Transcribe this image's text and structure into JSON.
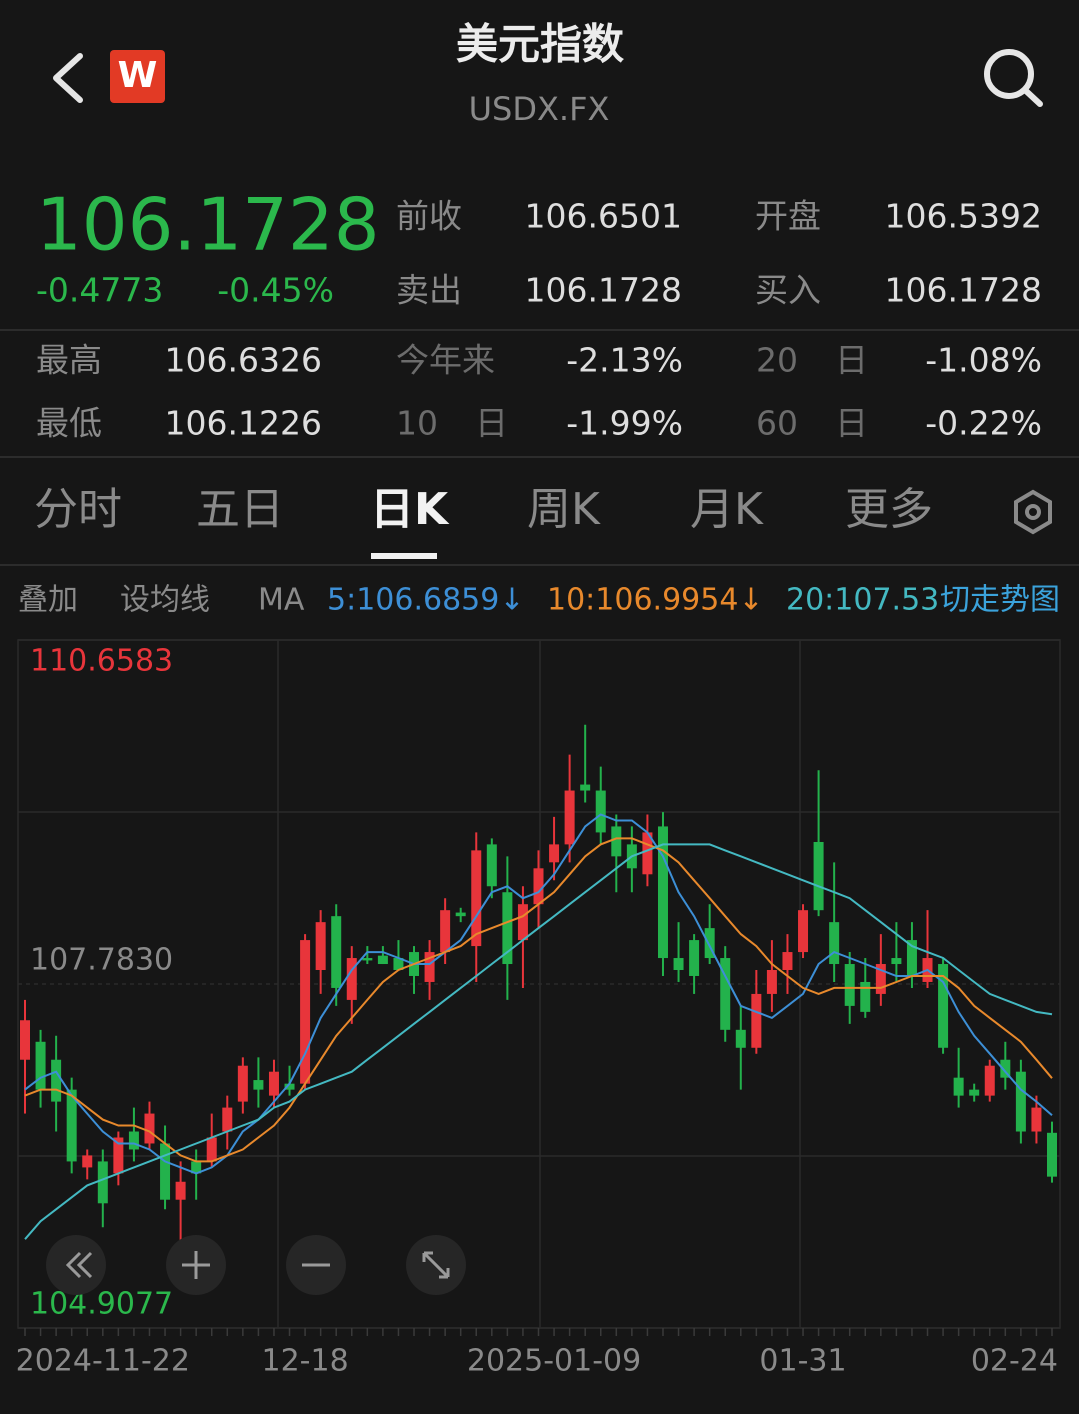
{
  "header": {
    "title": "美元指数",
    "code": "USDX.FX",
    "badge": "W"
  },
  "quote": {
    "price": "106.1728",
    "change": "-0.4773",
    "change_pct": "-0.45%",
    "fields": [
      [
        "前收",
        "106.6501"
      ],
      [
        "开盘",
        "106.5392"
      ],
      [
        "卖出",
        "106.1728"
      ],
      [
        "买入",
        "106.1728"
      ]
    ]
  },
  "stats": [
    [
      "最高",
      "106.6326",
      "今年来",
      "-2.13%",
      "20",
      "日",
      "-1.08%"
    ],
    [
      "最低",
      "106.1226",
      "10",
      "日",
      "-1.99%",
      "60",
      "日",
      "-0.22%"
    ]
  ],
  "tabs": [
    "分时",
    "五日",
    "日K",
    "周K",
    "月K",
    "更多"
  ],
  "toolbar": {
    "overlay": "叠加",
    "set_ma": "设均线",
    "ma": "MA",
    "switch": "切走势图"
  },
  "chart_data": {
    "type": "candlestick",
    "categories": [
      null,
      null,
      null,
      null,
      null,
      "2024-11-22",
      null,
      null,
      null,
      null,
      null,
      null,
      null,
      null,
      null,
      null,
      null,
      null,
      "12-18",
      null,
      null,
      null,
      null,
      null,
      null,
      null,
      null,
      null,
      null,
      null,
      null,
      null,
      null,
      null,
      "2025-01-09",
      null,
      null,
      null,
      null,
      null,
      null,
      null,
      null,
      null,
      null,
      null,
      null,
      null,
      null,
      null,
      "01-31",
      null,
      null,
      null,
      null,
      null,
      null,
      null,
      null,
      null,
      null,
      null,
      null,
      null,
      null,
      null,
      "02-24"
    ],
    "open": [
      107.15,
      107.3,
      107.15,
      106.9,
      106.25,
      106.3,
      106.2,
      106.55,
      106.45,
      106.45,
      105.98,
      106.3,
      106.3,
      106.55,
      106.8,
      106.98,
      106.85,
      106.95,
      106.95,
      107.9,
      108.35,
      107.65,
      108.0,
      108.02,
      108.0,
      108.05,
      107.8,
      108.05,
      108.38,
      108.1,
      108.95,
      108.55,
      108.15,
      108.45,
      108.8,
      108.95,
      109.45,
      109.4,
      109.1,
      108.95,
      108.7,
      109.1,
      108.0,
      108.15,
      108.25,
      108.0,
      107.4,
      107.25,
      107.7,
      107.9,
      108.05,
      108.97,
      108.3,
      107.95,
      107.8,
      107.7,
      108.0,
      108.15,
      107.8,
      107.95,
      107.0,
      106.9,
      106.85,
      107.15,
      107.05,
      106.55,
      106.5392
    ],
    "high": [
      107.65,
      107.4,
      107.35,
      107.0,
      106.4,
      106.4,
      106.55,
      106.75,
      106.8,
      106.6,
      106.3,
      106.4,
      106.7,
      106.85,
      107.17,
      107.17,
      107.15,
      107.1,
      108.2,
      108.4,
      108.45,
      108.1,
      108.1,
      108.1,
      108.15,
      108.1,
      108.15,
      108.5,
      108.42,
      109.05,
      109.0,
      108.85,
      108.6,
      108.9,
      109.18,
      109.7,
      109.95,
      109.6,
      109.2,
      109.1,
      109.2,
      109.22,
      108.3,
      108.2,
      108.45,
      108.1,
      107.6,
      107.9,
      108.15,
      108.2,
      108.45,
      109.57,
      108.8,
      108.05,
      108.0,
      108.2,
      108.3,
      108.3,
      108.4,
      108.0,
      107.25,
      106.95,
      107.15,
      107.3,
      107.15,
      106.85,
      106.6326
    ],
    "low": [
      106.7,
      106.75,
      106.55,
      106.2,
      106.15,
      105.75,
      106.1,
      106.3,
      106.4,
      105.9,
      105.63,
      105.98,
      106.25,
      106.4,
      106.7,
      106.75,
      106.75,
      106.85,
      106.9,
      107.7,
      107.6,
      107.45,
      107.95,
      107.95,
      107.9,
      107.7,
      107.65,
      107.95,
      108.3,
      107.8,
      108.5,
      107.65,
      107.75,
      108.25,
      108.65,
      108.8,
      109.3,
      108.95,
      108.55,
      108.55,
      108.6,
      107.85,
      107.8,
      107.7,
      107.95,
      107.3,
      106.9,
      107.2,
      107.55,
      107.7,
      108.0,
      108.35,
      107.8,
      107.45,
      107.5,
      107.6,
      107.8,
      107.75,
      107.75,
      107.2,
      106.75,
      106.8,
      106.8,
      106.9,
      106.45,
      106.45,
      106.1226
    ],
    "close": [
      107.48,
      106.9,
      106.8,
      106.3,
      106.35,
      105.95,
      106.5,
      106.4,
      106.7,
      105.98,
      106.13,
      106.2,
      106.5,
      106.75,
      107.1,
      106.9,
      107.05,
      106.9,
      108.15,
      108.3,
      107.75,
      108.0,
      107.98,
      107.95,
      107.9,
      107.85,
      108.05,
      108.4,
      108.35,
      108.9,
      108.6,
      107.95,
      108.45,
      108.75,
      108.95,
      109.4,
      109.4,
      109.05,
      108.85,
      108.75,
      109.05,
      108.0,
      107.9,
      107.85,
      108.0,
      107.4,
      107.25,
      107.7,
      107.9,
      108.05,
      108.4,
      108.4,
      107.95,
      107.6,
      107.55,
      107.95,
      107.95,
      107.85,
      108.0,
      107.25,
      106.85,
      106.85,
      107.1,
      107.0,
      106.55,
      106.75,
      106.1728
    ],
    "lines": [
      {
        "label": "5:106.6859↓",
        "color": "#3d8fd6",
        "values": [
          106.9,
          107.0,
          107.05,
          106.85,
          106.7,
          106.55,
          106.45,
          106.45,
          106.4,
          106.3,
          106.25,
          106.2,
          106.25,
          106.35,
          106.55,
          106.65,
          106.8,
          106.95,
          107.2,
          107.5,
          107.7,
          107.9,
          108.05,
          108.05,
          108.0,
          107.95,
          107.95,
          108.05,
          108.15,
          108.35,
          108.55,
          108.6,
          108.5,
          108.55,
          108.7,
          108.9,
          109.1,
          109.2,
          109.15,
          109.15,
          109.05,
          108.85,
          108.55,
          108.35,
          108.1,
          107.85,
          107.6,
          107.55,
          107.5,
          107.6,
          107.7,
          107.95,
          108.05,
          108.0,
          107.95,
          107.9,
          107.85,
          107.85,
          107.9,
          107.8,
          107.55,
          107.35,
          107.2,
          107.05,
          106.9,
          106.8,
          106.6859
        ]
      },
      {
        "label": "10:106.9954↓",
        "color": "#e8892c",
        "values": [
          106.85,
          106.9,
          106.9,
          106.85,
          106.75,
          106.65,
          106.6,
          106.6,
          106.55,
          106.45,
          106.35,
          106.3,
          106.3,
          106.35,
          106.4,
          106.5,
          106.6,
          106.75,
          106.95,
          107.15,
          107.35,
          107.5,
          107.65,
          107.8,
          107.9,
          107.95,
          108.0,
          108.05,
          108.1,
          108.2,
          108.25,
          108.3,
          108.35,
          108.45,
          108.55,
          108.7,
          108.85,
          108.95,
          109.0,
          109.0,
          108.95,
          108.9,
          108.8,
          108.65,
          108.5,
          108.35,
          108.2,
          108.1,
          107.95,
          107.85,
          107.75,
          107.7,
          107.75,
          107.75,
          107.75,
          107.75,
          107.8,
          107.85,
          107.85,
          107.85,
          107.75,
          107.6,
          107.5,
          107.4,
          107.3,
          107.15,
          106.9954
        ]
      },
      {
        "label": "20:107.53",
        "color": "#44b9c2",
        "values": [
          105.65,
          105.8,
          105.9,
          106.0,
          106.1,
          106.15,
          106.2,
          106.25,
          106.3,
          106.35,
          106.4,
          106.45,
          106.5,
          106.55,
          106.6,
          106.65,
          106.75,
          106.8,
          106.9,
          106.95,
          107.0,
          107.05,
          107.15,
          107.25,
          107.35,
          107.45,
          107.55,
          107.65,
          107.75,
          107.85,
          107.95,
          108.05,
          108.15,
          108.25,
          108.35,
          108.45,
          108.55,
          108.65,
          108.75,
          108.85,
          108.9,
          108.95,
          108.95,
          108.95,
          108.95,
          108.9,
          108.85,
          108.8,
          108.75,
          108.7,
          108.65,
          108.6,
          108.55,
          108.5,
          108.4,
          108.3,
          108.2,
          108.1,
          108.05,
          108.0,
          107.9,
          107.8,
          107.7,
          107.65,
          107.6,
          107.55,
          107.53
        ]
      }
    ],
    "ylim": [
      104.9077,
      110.6583
    ],
    "yticks": [
      104.9077,
      {
        "value": 107.783,
        "label": "107.7830"
      },
      110.6583
    ],
    "up_color": "#e8353b",
    "down_color": "#23b24c"
  }
}
